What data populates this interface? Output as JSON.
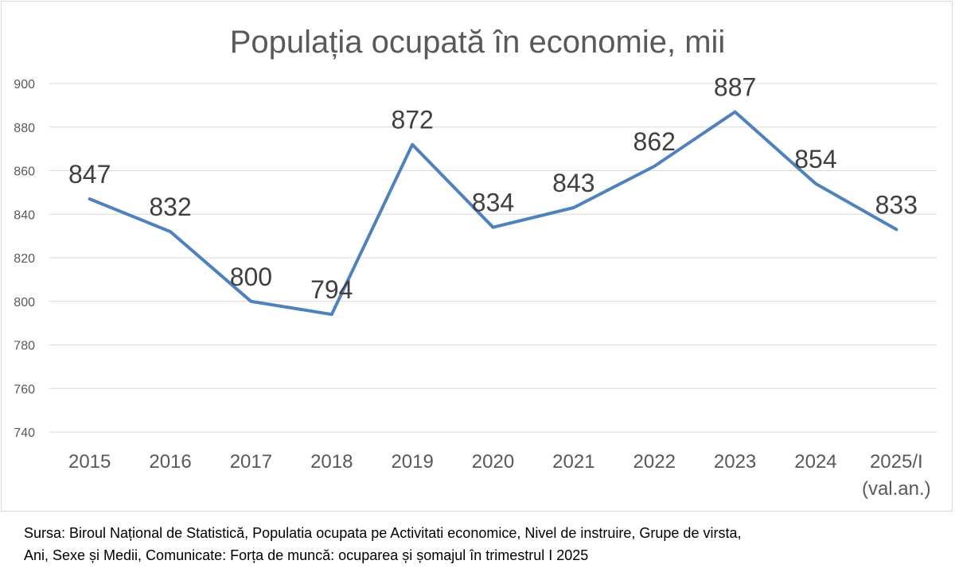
{
  "chart_data": {
    "type": "line",
    "title": "Populația ocupată în economie, mii",
    "categories": [
      "2015",
      "2016",
      "2017",
      "2018",
      "2019",
      "2020",
      "2021",
      "2022",
      "2023",
      "2024",
      "2025/I (val.an.)"
    ],
    "category_lines": [
      [
        "2015"
      ],
      [
        "2016"
      ],
      [
        "2017"
      ],
      [
        "2018"
      ],
      [
        "2019"
      ],
      [
        "2020"
      ],
      [
        "2021"
      ],
      [
        "2022"
      ],
      [
        "2023"
      ],
      [
        "2024"
      ],
      [
        "2025/I",
        "(val.an.)"
      ]
    ],
    "series": [
      {
        "values": [
          847,
          832,
          800,
          794,
          872,
          834,
          843,
          862,
          887,
          854,
          833
        ]
      }
    ],
    "data_labels": [
      "847",
      "832",
      "800",
      "794",
      "872",
      "834",
      "843",
      "862",
      "887",
      "854",
      "833"
    ],
    "ylim": [
      740,
      900
    ],
    "yticks": [
      740,
      760,
      780,
      800,
      820,
      840,
      860,
      880,
      900
    ],
    "grid": true,
    "legend": "none",
    "colors": {
      "line": "#4f81bd",
      "grid": "#d9d9d9",
      "text": "#595959",
      "label": "#404040"
    }
  },
  "source": {
    "line1": "Sursa: Biroul Național de Statistică, Populatia ocupata pe Activitati economice, Nivel de instruire, Grupe de virsta,",
    "line2": "Ani, Sexe și Medii, Comunicate: Forța de muncă: ocuparea și șomajul în trimestrul I 2025"
  }
}
